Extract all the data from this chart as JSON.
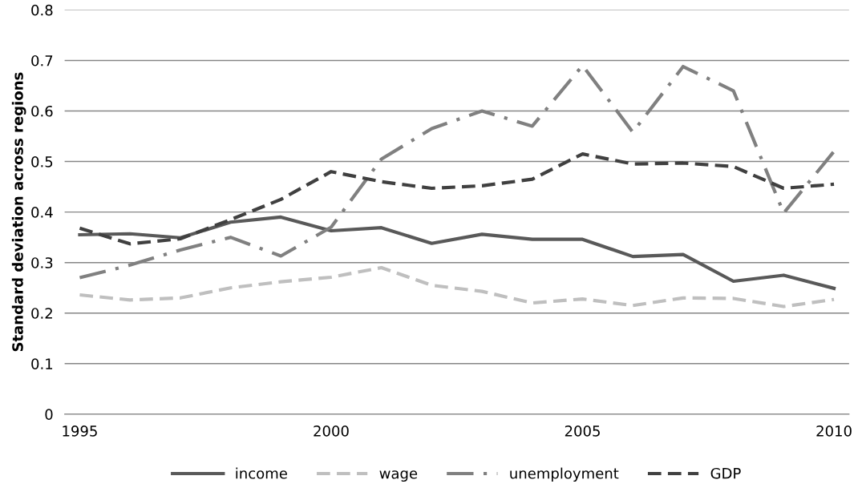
{
  "chart_data": {
    "type": "line",
    "ylabel": "Standard deviation across regions",
    "categories": [
      "1995",
      null,
      null,
      null,
      null,
      "2000",
      null,
      null,
      null,
      null,
      "2005",
      null,
      null,
      null,
      null,
      "2010"
    ],
    "series": [
      {
        "name": "income",
        "color": "#595959",
        "line_style": "solid",
        "values": [
          0.355,
          0.357,
          0.349,
          0.38,
          0.39,
          0.363,
          0.369,
          0.338,
          0.356,
          0.346,
          0.346,
          0.312,
          0.316,
          0.263,
          0.275,
          0.249
        ]
      },
      {
        "name": "wage",
        "color": "#bfbfbf",
        "line_style": "dashed",
        "values": [
          0.236,
          0.226,
          0.23,
          0.25,
          0.262,
          0.271,
          0.29,
          0.255,
          0.243,
          0.22,
          0.228,
          0.215,
          0.23,
          0.229,
          0.213,
          0.227
        ]
      },
      {
        "name": "unemployment",
        "color": "#808080",
        "line_style": "dashdot",
        "values": [
          0.27,
          0.295,
          0.325,
          0.35,
          0.313,
          0.37,
          0.505,
          0.565,
          0.6,
          0.57,
          0.69,
          0.558,
          0.688,
          0.64,
          0.398,
          0.52
        ]
      },
      {
        "name": "GDP",
        "color": "#404040",
        "line_style": "dashed",
        "values": [
          0.368,
          0.337,
          0.347,
          0.385,
          0.425,
          0.48,
          0.46,
          0.447,
          0.452,
          0.465,
          0.515,
          0.495,
          0.497,
          0.49,
          0.447,
          0.455
        ]
      }
    ],
    "ylim": [
      0,
      0.8
    ],
    "yticks": [
      {
        "value": 0,
        "label": "0"
      },
      0.1,
      0.2,
      0.3,
      0.4,
      0.5,
      0.6,
      0.7,
      0.8
    ],
    "grid": "y",
    "legend": "bottom",
    "marker": "none"
  }
}
